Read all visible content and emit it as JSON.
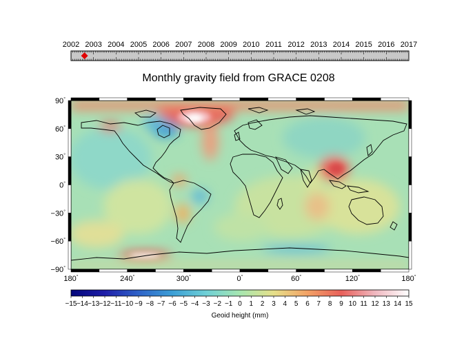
{
  "title": "Monthly gravity field from GRACE 0208",
  "timeline": {
    "years": [
      "2002",
      "2003",
      "2004",
      "2005",
      "2006",
      "2007",
      "2008",
      "2009",
      "2010",
      "2011",
      "2012",
      "2013",
      "2014",
      "2015",
      "2016",
      "2017"
    ],
    "current_value": 2002.6,
    "range": [
      2002,
      2017
    ],
    "marker_color": "#e00000",
    "bar_color": "#c8c8c8"
  },
  "map": {
    "lat_labels": [
      "90",
      "60",
      "30",
      "0",
      "−30",
      "−60",
      "−90"
    ],
    "lon_labels": [
      "180",
      "240",
      "300",
      "0",
      "60",
      "120",
      "180"
    ],
    "degree_symbol": "°",
    "projection": "plate-carree",
    "central_longitude": 0
  },
  "colorbar": {
    "label": "Geoid height (mm)",
    "tick_labels": [
      "−15",
      "−14",
      "−13",
      "−12",
      "−11",
      "−10",
      "−9",
      "−8",
      "−7",
      "−6",
      "−5",
      "−4",
      "−3",
      "−2",
      "−1",
      "0",
      "1",
      "2",
      "3",
      "4",
      "5",
      "6",
      "7",
      "8",
      "9",
      "10",
      "11",
      "12",
      "13",
      "14",
      "15"
    ],
    "range": [
      -15,
      15
    ],
    "colors": [
      {
        "value": -15,
        "color": "#04067a"
      },
      {
        "value": -12,
        "color": "#1e1ea8"
      },
      {
        "value": -9,
        "color": "#2e63c8"
      },
      {
        "value": -6,
        "color": "#3c9fd6"
      },
      {
        "value": -3,
        "color": "#6fd0d6"
      },
      {
        "value": 0,
        "color": "#a6e6b0"
      },
      {
        "value": 3,
        "color": "#e6e08a"
      },
      {
        "value": 6,
        "color": "#f2a266"
      },
      {
        "value": 9,
        "color": "#e8605a"
      },
      {
        "value": 12,
        "color": "#f0b8c0"
      },
      {
        "value": 15,
        "color": "#ffffff"
      }
    ]
  }
}
